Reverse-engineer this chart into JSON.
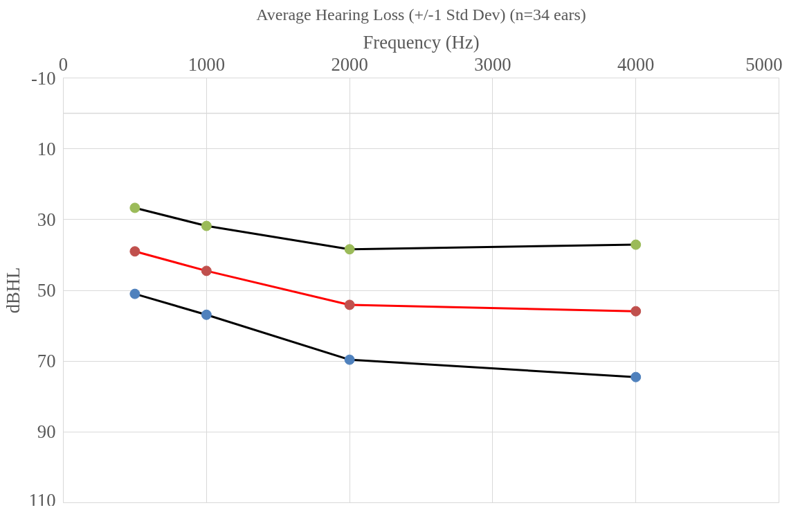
{
  "chart_data": {
    "type": "line",
    "title": "Average Hearing Loss (+/-1 Std Dev) (n=34 ears)",
    "xlabel": "Frequency (Hz)",
    "ylabel": "dBHL",
    "x": [
      500,
      1000,
      2000,
      4000
    ],
    "series": [
      {
        "color": "#000000",
        "colors": [
          "#9bbb59",
          "#9bbb59",
          "#9bbb59",
          "#9bbb59"
        ],
        "values": [
          26.7,
          31.8,
          38.4,
          37.1
        ]
      },
      {
        "color": "#ff0000",
        "colors": [
          "#c0504d",
          "#c0504d",
          "#c0504d",
          "#c0504d"
        ],
        "values": [
          39,
          44.5,
          54.1,
          55.9
        ]
      },
      {
        "color": "#000000",
        "colors": [
          "#4f81bd",
          "#4f81bd",
          "#4f81bd",
          "#4f81bd"
        ],
        "values": [
          51,
          56.9,
          69.6,
          74.5
        ]
      }
    ],
    "xlim": [
      0,
      5000
    ],
    "xticks": [
      0,
      1000,
      2000,
      3000,
      4000,
      5000
    ],
    "ylim": [
      110,
      -10
    ],
    "yticks": [
      -10,
      10,
      30,
      50,
      70,
      90,
      110
    ],
    "ref_lines": [
      {
        "axis": "y",
        "value": 0,
        "label": null,
        "color": "#d9d9d9"
      }
    ],
    "grid": true,
    "marker": "circle",
    "line_style": "solid"
  }
}
